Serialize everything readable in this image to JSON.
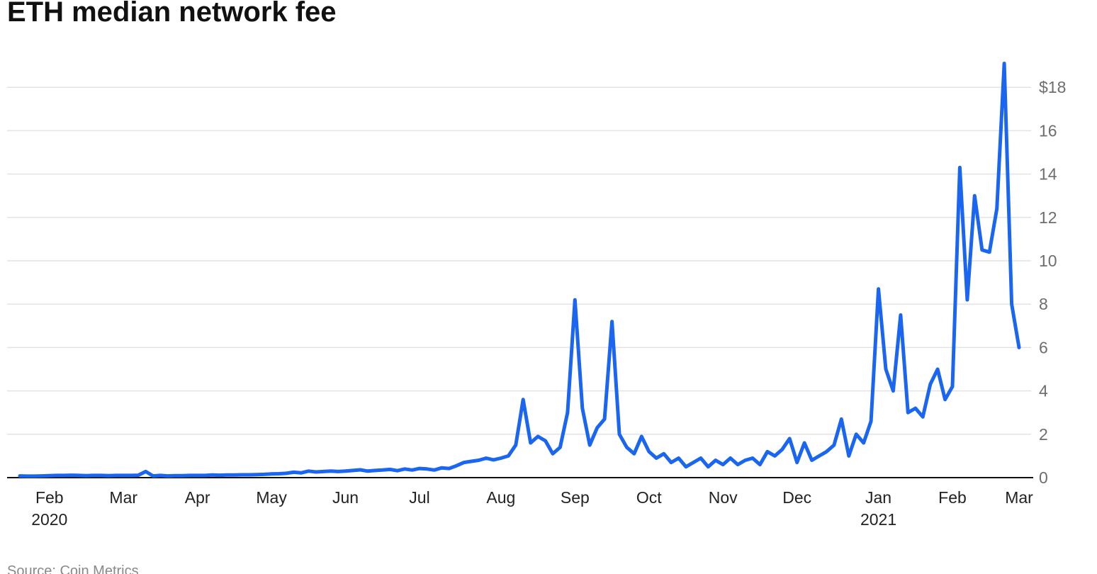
{
  "chart_data": {
    "type": "line",
    "title": "ETH median network fee",
    "source": "Source: Coin Metrics",
    "color": "#1a66f0",
    "grid": true,
    "categories": [
      null,
      null,
      null,
      null,
      "Feb",
      null,
      null,
      null,
      null,
      null,
      null,
      null,
      null,
      null,
      "Mar",
      null,
      null,
      null,
      null,
      null,
      null,
      null,
      null,
      null,
      "Apr",
      null,
      null,
      null,
      null,
      null,
      null,
      null,
      null,
      null,
      "May",
      null,
      null,
      null,
      null,
      null,
      null,
      null,
      null,
      null,
      "Jun",
      null,
      null,
      null,
      null,
      null,
      null,
      null,
      null,
      null,
      "Jul",
      null,
      null,
      null,
      null,
      null,
      null,
      null,
      null,
      null,
      null,
      "Aug",
      null,
      null,
      null,
      null,
      null,
      null,
      null,
      null,
      null,
      "Sep",
      null,
      null,
      null,
      null,
      null,
      null,
      null,
      null,
      null,
      "Oct",
      null,
      null,
      null,
      null,
      null,
      null,
      null,
      null,
      null,
      "Nov",
      null,
      null,
      null,
      null,
      null,
      null,
      null,
      null,
      null,
      "Dec",
      null,
      null,
      null,
      null,
      null,
      null,
      null,
      null,
      null,
      null,
      "Jan",
      null,
      null,
      null,
      null,
      null,
      null,
      null,
      null,
      null,
      "Feb",
      null,
      null,
      null,
      null,
      null,
      null,
      null,
      null,
      "Mar"
    ],
    "year_labels": [
      null,
      null,
      null,
      null,
      "2020",
      null,
      null,
      null,
      null,
      null,
      null,
      null,
      null,
      null,
      null,
      null,
      null,
      null,
      null,
      null,
      null,
      null,
      null,
      null,
      null,
      null,
      null,
      null,
      null,
      null,
      null,
      null,
      null,
      null,
      null,
      null,
      null,
      null,
      null,
      null,
      null,
      null,
      null,
      null,
      null,
      null,
      null,
      null,
      null,
      null,
      null,
      null,
      null,
      null,
      null,
      null,
      null,
      null,
      null,
      null,
      null,
      null,
      null,
      null,
      null,
      null,
      null,
      null,
      null,
      null,
      null,
      null,
      null,
      null,
      null,
      null,
      null,
      null,
      null,
      null,
      null,
      null,
      null,
      null,
      null,
      null,
      null,
      null,
      null,
      null,
      null,
      null,
      null,
      null,
      null,
      null,
      null,
      null,
      null,
      null,
      null,
      null,
      null,
      null,
      null,
      null,
      null,
      null,
      null,
      null,
      null,
      null,
      null,
      null,
      null,
      null,
      "2021",
      null,
      null,
      null,
      null,
      null,
      null,
      null,
      null,
      null,
      null,
      null,
      null,
      null,
      null,
      null,
      null,
      null,
      null,
      null
    ],
    "values": [
      0.08,
      0.07,
      0.07,
      0.08,
      0.09,
      0.1,
      0.1,
      0.11,
      0.1,
      0.09,
      0.1,
      0.1,
      0.09,
      0.1,
      0.1,
      0.1,
      0.11,
      0.28,
      0.08,
      0.1,
      0.08,
      0.09,
      0.09,
      0.1,
      0.1,
      0.1,
      0.12,
      0.11,
      0.12,
      0.12,
      0.13,
      0.13,
      0.14,
      0.15,
      0.17,
      0.18,
      0.2,
      0.25,
      0.22,
      0.3,
      0.26,
      0.28,
      0.3,
      0.28,
      0.3,
      0.33,
      0.36,
      0.3,
      0.33,
      0.35,
      0.38,
      0.32,
      0.4,
      0.35,
      0.42,
      0.4,
      0.35,
      0.45,
      0.42,
      0.55,
      0.7,
      0.75,
      0.8,
      0.9,
      0.82,
      0.9,
      1.0,
      1.5,
      3.6,
      1.6,
      1.9,
      1.7,
      1.1,
      1.4,
      3.0,
      8.2,
      3.2,
      1.5,
      2.3,
      2.7,
      7.2,
      2.0,
      1.4,
      1.1,
      1.9,
      1.2,
      0.9,
      1.1,
      0.7,
      0.9,
      0.5,
      0.7,
      0.9,
      0.5,
      0.8,
      0.6,
      0.9,
      0.6,
      0.8,
      0.9,
      0.6,
      1.2,
      1.0,
      1.3,
      1.8,
      0.7,
      1.6,
      0.8,
      1.0,
      1.2,
      1.5,
      2.7,
      1.0,
      2.0,
      1.6,
      2.6,
      8.7,
      5.0,
      4.0,
      7.5,
      3.0,
      3.2,
      2.8,
      4.3,
      5.0,
      3.6,
      4.2,
      14.3,
      8.2,
      13.0,
      10.5,
      10.4,
      12.4,
      19.1,
      8.0,
      6.0
    ],
    "ylim": [
      0,
      20
    ],
    "yticks": [
      0,
      2,
      4,
      6,
      8,
      10,
      12,
      14,
      16,
      {
        "value": 18,
        "label": "$18"
      }
    ]
  }
}
